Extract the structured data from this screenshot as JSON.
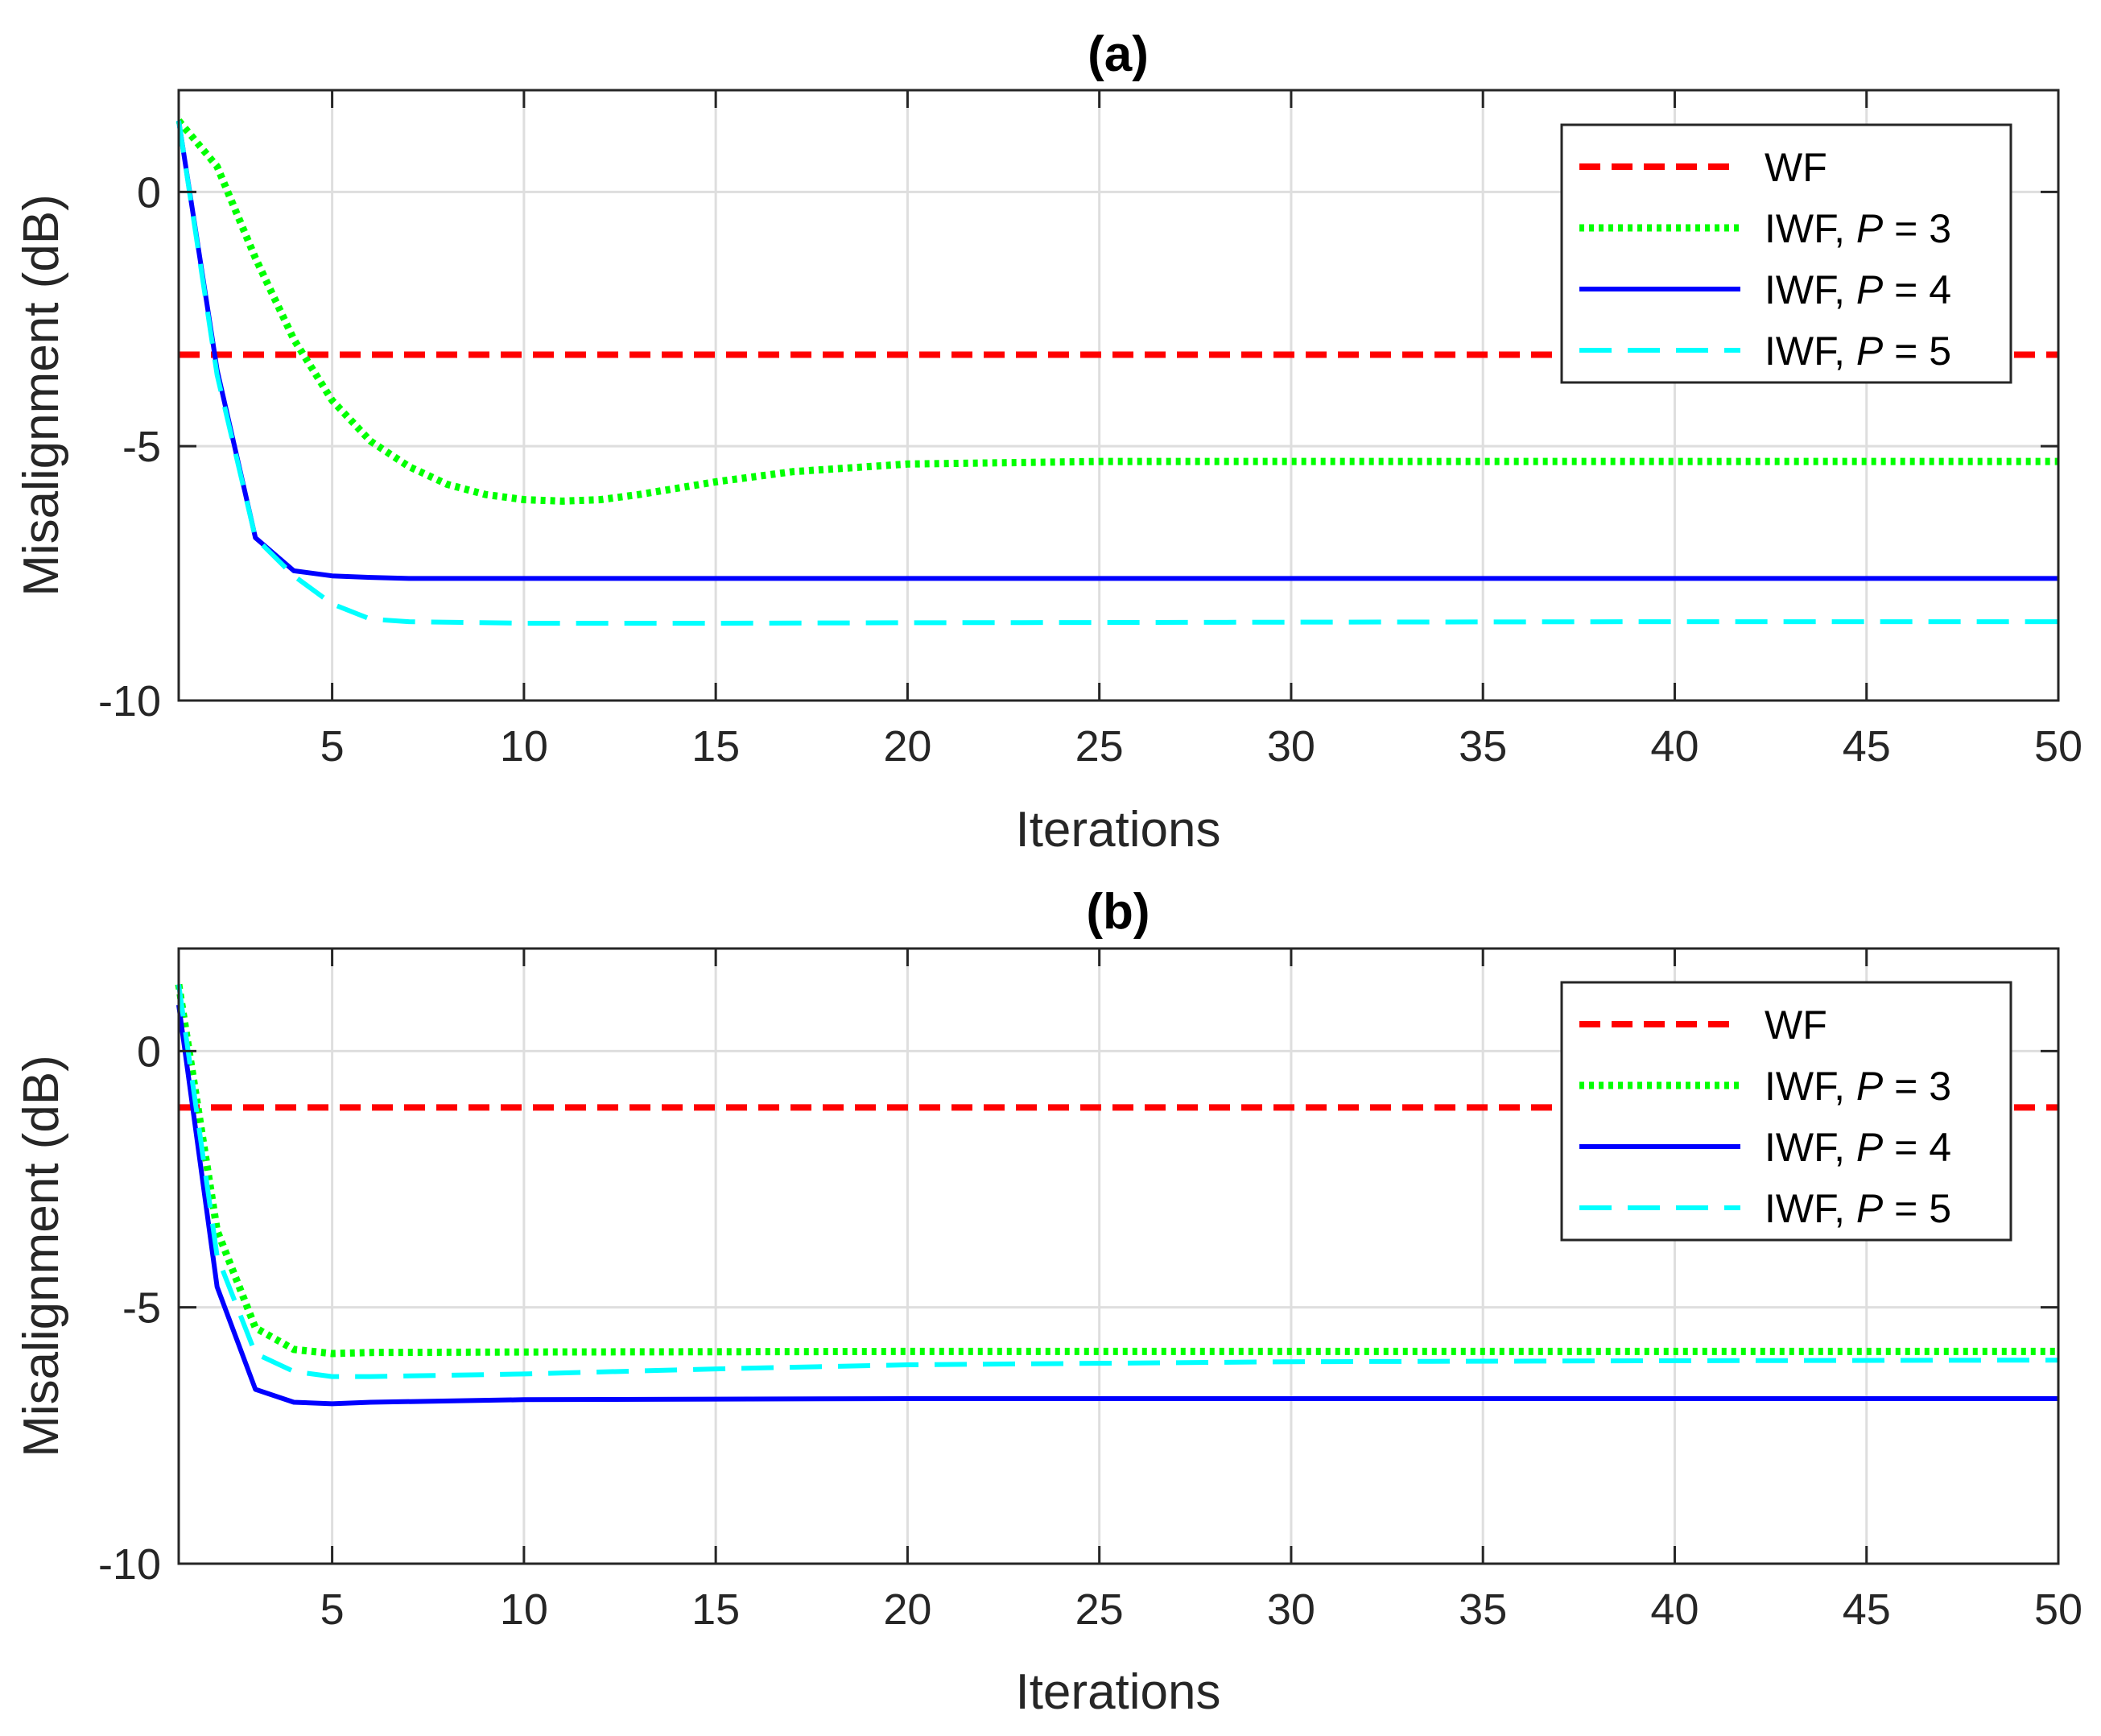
{
  "chart_data": [
    {
      "type": "line",
      "title": "(a)",
      "xlabel": "Iterations",
      "ylabel": "Misalignment (dB)",
      "xlim": [
        1,
        50
      ],
      "ylim": [
        -10,
        2
      ],
      "xticks": [
        5,
        10,
        15,
        20,
        25,
        30,
        35,
        40,
        45,
        50
      ],
      "yticks": [
        0,
        -5,
        -10
      ],
      "ytick_labels": [
        "0",
        "-5",
        "-10"
      ],
      "grid": true,
      "legend_position": "top-right",
      "series": [
        {
          "name": "WF",
          "legend_prefix": "WF",
          "legend_var": "",
          "legend_rest": "",
          "color": "#ff0000",
          "style": "dashed",
          "x": [
            1,
            50
          ],
          "y": [
            -3.2,
            -3.2
          ]
        },
        {
          "name": "IWF, P = 3",
          "legend_prefix": "IWF, ",
          "legend_var": "P",
          "legend_rest": " = 3",
          "color": "#00ff00",
          "style": "dotted",
          "x": [
            1,
            2,
            3,
            4,
            5,
            6,
            7,
            8,
            9,
            10,
            11,
            12,
            13,
            15,
            17,
            20,
            25,
            30,
            40,
            50
          ],
          "y": [
            1.4,
            0.5,
            -1.3,
            -2.9,
            -4.1,
            -4.9,
            -5.4,
            -5.75,
            -5.95,
            -6.05,
            -6.08,
            -6.05,
            -5.95,
            -5.7,
            -5.5,
            -5.35,
            -5.3,
            -5.3,
            -5.3,
            -5.3
          ]
        },
        {
          "name": "IWF, P = 4",
          "legend_prefix": "IWF, ",
          "legend_var": "P",
          "legend_rest": " = 4",
          "color": "#0000ff",
          "style": "solid",
          "x": [
            1,
            2,
            3,
            4,
            5,
            6,
            7,
            10,
            20,
            30,
            40,
            50
          ],
          "y": [
            1.4,
            -3.5,
            -6.8,
            -7.45,
            -7.55,
            -7.58,
            -7.6,
            -7.6,
            -7.6,
            -7.6,
            -7.6,
            -7.6
          ]
        },
        {
          "name": "IWF, P = 5",
          "legend_prefix": "IWF, ",
          "legend_var": "P",
          "legend_rest": " = 5",
          "color": "#00ffff",
          "style": "longdash",
          "x": [
            1,
            2,
            3,
            4,
            5,
            6,
            7,
            10,
            15,
            20,
            30,
            40,
            50
          ],
          "y": [
            1.4,
            -3.6,
            -6.8,
            -7.55,
            -8.1,
            -8.4,
            -8.45,
            -8.48,
            -8.48,
            -8.47,
            -8.46,
            -8.45,
            -8.45
          ]
        }
      ]
    },
    {
      "type": "line",
      "title": "(b)",
      "xlabel": "Iterations",
      "ylabel": "Misalignment (dB)",
      "xlim": [
        1,
        50
      ],
      "ylim": [
        -10,
        2
      ],
      "xticks": [
        5,
        10,
        15,
        20,
        25,
        30,
        35,
        40,
        45,
        50
      ],
      "yticks": [
        0,
        -5,
        -10
      ],
      "ytick_labels": [
        "0",
        "-5",
        "-10"
      ],
      "grid": true,
      "legend_position": "top-right",
      "series": [
        {
          "name": "WF",
          "legend_prefix": "WF",
          "legend_var": "",
          "legend_rest": "",
          "color": "#ff0000",
          "style": "dashed",
          "x": [
            1,
            50
          ],
          "y": [
            -1.1,
            -1.1
          ]
        },
        {
          "name": "IWF, P = 3",
          "legend_prefix": "IWF, ",
          "legend_var": "P",
          "legend_rest": " = 3",
          "color": "#00ff00",
          "style": "dotted",
          "x": [
            1,
            2,
            3,
            4,
            5,
            6,
            10,
            20,
            30,
            40,
            50
          ],
          "y": [
            1.3,
            -3.5,
            -5.4,
            -5.82,
            -5.9,
            -5.88,
            -5.87,
            -5.86,
            -5.86,
            -5.86,
            -5.86
          ]
        },
        {
          "name": "IWF, P = 4",
          "legend_prefix": "IWF, ",
          "legend_var": "P",
          "legend_rest": " = 4",
          "color": "#0000ff",
          "style": "solid",
          "x": [
            1,
            2,
            3,
            4,
            5,
            6,
            10,
            20,
            30,
            40,
            50
          ],
          "y": [
            0.9,
            -4.6,
            -6.6,
            -6.85,
            -6.88,
            -6.85,
            -6.8,
            -6.78,
            -6.78,
            -6.78,
            -6.78
          ]
        },
        {
          "name": "IWF, P = 5",
          "legend_prefix": "IWF, ",
          "legend_var": "P",
          "legend_rest": " = 5",
          "color": "#00ffff",
          "style": "longdash",
          "x": [
            1,
            2,
            3,
            4,
            5,
            6,
            10,
            15,
            20,
            30,
            40,
            50
          ],
          "y": [
            1.3,
            -4.0,
            -5.9,
            -6.25,
            -6.35,
            -6.35,
            -6.3,
            -6.2,
            -6.12,
            -6.06,
            -6.04,
            -6.03
          ]
        }
      ]
    }
  ]
}
